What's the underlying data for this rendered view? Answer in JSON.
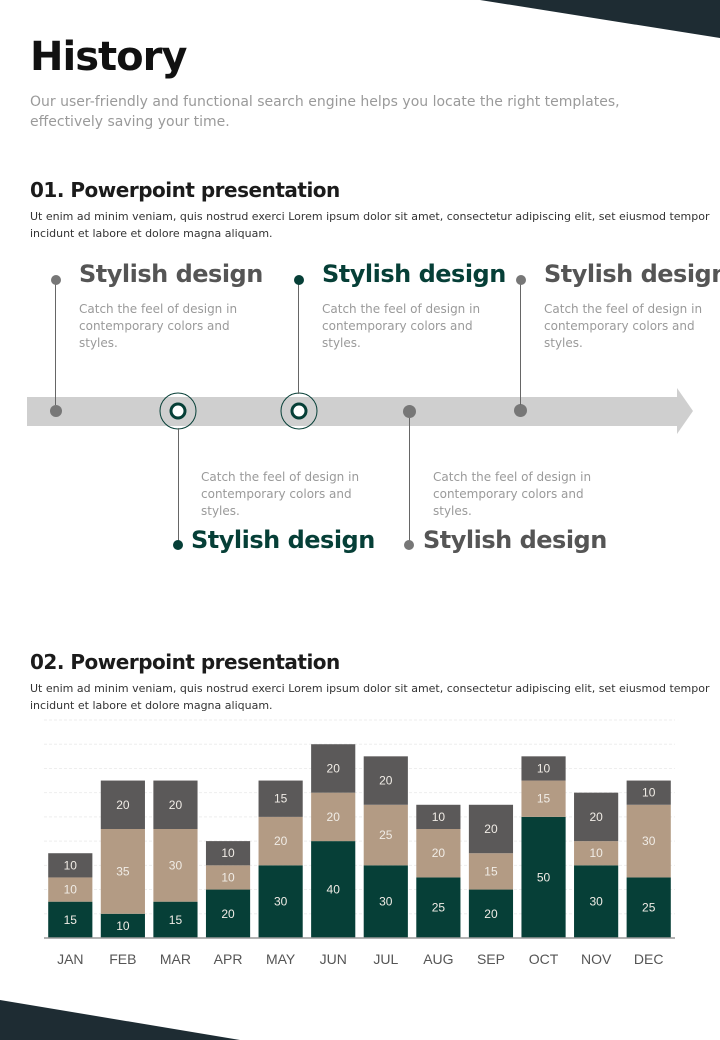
{
  "header": {
    "title": "History",
    "subtitle": "Our user-friendly and functional search engine helps you locate the right templates, effectively saving your time."
  },
  "section1": {
    "title": "01. Powerpoint presentation",
    "description": "Ut enim ad minim veniam, quis nostrud exerci  Lorem ipsum dolor sit amet, consectetur adipiscing elit, set eiusmod tempor incidunt et labore et dolore magna aliquam."
  },
  "timeline": [
    {
      "title": "Stylish design",
      "text": "Catch the feel of design in contemporary colors and styles.",
      "color": "gray"
    },
    {
      "title": "Stylish design",
      "text": "Catch the feel of design in contemporary colors and styles.",
      "color": "green"
    },
    {
      "title": "Stylish design",
      "text": "Catch the feel of design in contemporary colors and styles.",
      "color": "green"
    },
    {
      "title": "Stylish design",
      "text": "Catch the feel of design in contemporary colors and styles.",
      "color": "gray"
    },
    {
      "title": "Stylish design",
      "text": "Catch the feel of design in contemporary colors and styles.",
      "color": "gray"
    }
  ],
  "section2": {
    "title": "02. Powerpoint presentation",
    "description": "Ut enim ad minim veniam, quis nostrud exerci  Lorem ipsum dolor sit amet, consectetur adipiscing elit, set eiusmod tempor incidunt et labore et dolore magna aliquam."
  },
  "colors": {
    "green": "#063f37",
    "tan": "#b39b84",
    "gray": "#5b5959"
  },
  "chart_data": {
    "type": "bar",
    "stacked": true,
    "categories": [
      "JAN",
      "FEB",
      "MAR",
      "APR",
      "MAY",
      "JUN",
      "JUL",
      "AUG",
      "SEP",
      "OCT",
      "NOV",
      "DEC"
    ],
    "series": [
      {
        "values": [
          15,
          10,
          15,
          20,
          30,
          40,
          30,
          25,
          20,
          50,
          30,
          25
        ],
        "color": "#063f37"
      },
      {
        "values": [
          10,
          35,
          30,
          10,
          20,
          20,
          25,
          20,
          15,
          15,
          10,
          30
        ],
        "color": "#b39b84"
      },
      {
        "values": [
          10,
          20,
          20,
          10,
          15,
          20,
          20,
          10,
          20,
          10,
          20,
          10
        ],
        "color": "#5b5959"
      }
    ],
    "ylim": [
      0,
      90
    ],
    "grid": true
  }
}
